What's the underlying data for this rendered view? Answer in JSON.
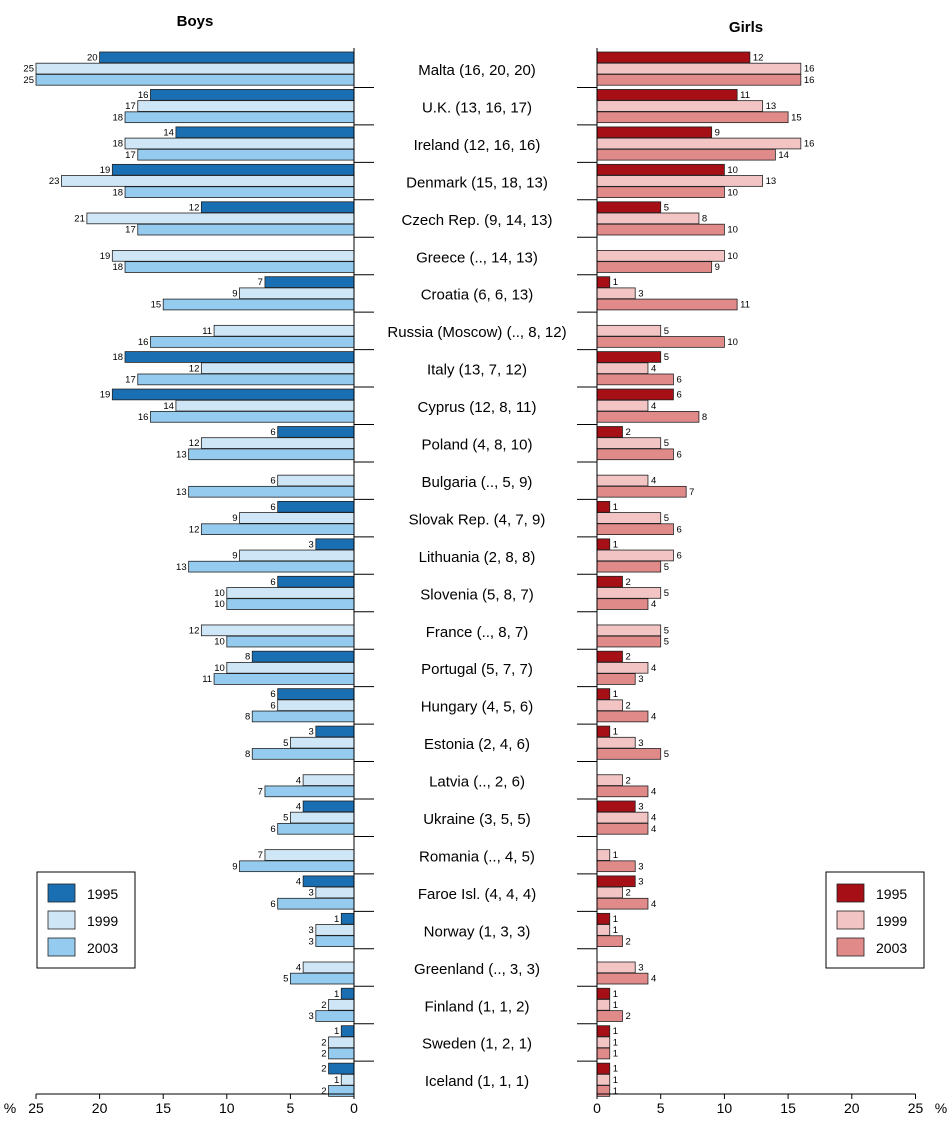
{
  "chart_data": {
    "type": "bar",
    "orientation": "horizontal",
    "panels": [
      {
        "title": "Boys",
        "direction": "right-to-left",
        "xlim": [
          0,
          25
        ],
        "ticks": [
          "25",
          "20",
          "15",
          "10",
          "5",
          "0"
        ],
        "unit_label": "%",
        "colors": {
          "1995": "#1a6fb3",
          "1999": "#cfe6f6",
          "2003": "#94cbef"
        }
      },
      {
        "title": "Girls",
        "direction": "left-to-right",
        "xlim": [
          0,
          25
        ],
        "ticks": [
          "0",
          "5",
          "10",
          "15",
          "20",
          "25"
        ],
        "unit_label": "%",
        "colors": {
          "1995": "#a50f15",
          "1999": "#f2c4c4",
          "2003": "#e08a8a"
        }
      }
    ],
    "legend": {
      "entries": [
        "1995",
        "1999",
        "2003"
      ],
      "placement": "bottom-left / bottom-right"
    },
    "series_names": [
      "1995",
      "1999",
      "2003"
    ],
    "countries": [
      {
        "label": "Malta (16, 20, 20)",
        "boys": [
          20,
          25,
          25
        ],
        "girls": [
          12,
          16,
          16
        ]
      },
      {
        "label": "U.K. (13, 16, 17)",
        "boys": [
          16,
          17,
          18
        ],
        "girls": [
          11,
          13,
          15
        ]
      },
      {
        "label": "Ireland (12, 16, 16)",
        "boys": [
          14,
          18,
          17
        ],
        "girls": [
          9,
          16,
          14
        ]
      },
      {
        "label": "Denmark (15, 18, 13)",
        "boys": [
          19,
          23,
          18
        ],
        "girls": [
          10,
          13,
          10
        ]
      },
      {
        "label": "Czech Rep. (9, 14, 13)",
        "boys": [
          12,
          21,
          17
        ],
        "girls": [
          5,
          8,
          10
        ]
      },
      {
        "label": "Greece (.., 14, 13)",
        "boys": [
          null,
          19,
          18
        ],
        "girls": [
          null,
          10,
          9
        ]
      },
      {
        "label": "Croatia (6, 6, 13)",
        "boys": [
          7,
          9,
          15
        ],
        "girls": [
          1,
          3,
          11
        ]
      },
      {
        "label": "Russia (Moscow) (.., 8, 12)",
        "boys": [
          null,
          11,
          16
        ],
        "girls": [
          null,
          5,
          10
        ]
      },
      {
        "label": "Italy (13, 7, 12)",
        "boys": [
          18,
          12,
          17
        ],
        "girls": [
          5,
          4,
          6
        ]
      },
      {
        "label": "Cyprus (12, 8, 11)",
        "boys": [
          19,
          14,
          16
        ],
        "girls": [
          6,
          4,
          8
        ]
      },
      {
        "label": "Poland (4, 8, 10)",
        "boys": [
          6,
          12,
          13
        ],
        "girls": [
          2,
          5,
          6
        ]
      },
      {
        "label": "Bulgaria (.., 5, 9)",
        "boys": [
          null,
          6,
          13
        ],
        "girls": [
          null,
          4,
          7
        ]
      },
      {
        "label": "Slovak Rep. (4, 7, 9)",
        "boys": [
          6,
          9,
          12
        ],
        "girls": [
          1,
          5,
          6
        ]
      },
      {
        "label": "Lithuania (2, 8, 8)",
        "boys": [
          3,
          9,
          13
        ],
        "girls": [
          1,
          6,
          5
        ]
      },
      {
        "label": "Slovenia (5, 8, 7)",
        "boys": [
          6,
          10,
          10
        ],
        "girls": [
          2,
          5,
          4
        ]
      },
      {
        "label": "France (.., 8, 7)",
        "boys": [
          null,
          12,
          10
        ],
        "girls": [
          null,
          5,
          5
        ]
      },
      {
        "label": "Portugal (5, 7, 7)",
        "boys": [
          8,
          10,
          11
        ],
        "girls": [
          2,
          4,
          3
        ]
      },
      {
        "label": "Hungary (4, 5, 6)",
        "boys": [
          6,
          6,
          8
        ],
        "girls": [
          1,
          2,
          4
        ]
      },
      {
        "label": "Estonia (2, 4, 6)",
        "boys": [
          3,
          5,
          8
        ],
        "girls": [
          1,
          3,
          5
        ]
      },
      {
        "label": "Latvia (.., 2, 6)",
        "boys": [
          null,
          4,
          7
        ],
        "girls": [
          null,
          2,
          4
        ]
      },
      {
        "label": "Ukraine (3, 5, 5)",
        "boys": [
          4,
          5,
          6
        ],
        "girls": [
          3,
          4,
          4
        ]
      },
      {
        "label": "Romania (.., 4, 5)",
        "boys": [
          null,
          7,
          9
        ],
        "girls": [
          null,
          1,
          3
        ]
      },
      {
        "label": "Faroe Isl. (4, 4, 4)",
        "boys": [
          4,
          3,
          6
        ],
        "girls": [
          3,
          2,
          4
        ]
      },
      {
        "label": "Norway (1, 3, 3)",
        "boys": [
          1,
          3,
          3
        ],
        "girls": [
          1,
          1,
          2
        ]
      },
      {
        "label": "Greenland (.., 3, 3)",
        "boys": [
          null,
          4,
          5
        ],
        "girls": [
          null,
          3,
          4
        ]
      },
      {
        "label": "Finland (1, 1, 2)",
        "boys": [
          1,
          2,
          3
        ],
        "girls": [
          1,
          1,
          2
        ]
      },
      {
        "label": "Sweden (1, 2, 1)",
        "boys": [
          1,
          2,
          2
        ],
        "girls": [
          1,
          1,
          1
        ]
      },
      {
        "label": "Iceland (1, 1, 1)",
        "boys": [
          2,
          1,
          2
        ],
        "girls": [
          1,
          1,
          1
        ]
      }
    ]
  }
}
